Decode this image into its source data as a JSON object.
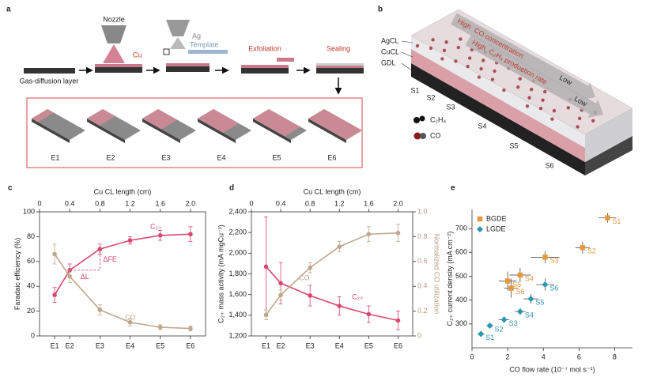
{
  "diagram_a": {
    "panel": "a",
    "nozzle": "Nozzle",
    "cu": "Cu",
    "ag": "Ag",
    "template": "Template",
    "exfoliation": "Exfoliation",
    "sealing": "Sealing",
    "gdl": "Gas-diffusion layer",
    "electrodes": [
      "E1",
      "E2",
      "E3",
      "E4",
      "E5",
      "E6"
    ]
  },
  "diagram_b": {
    "panel": "b",
    "layers": [
      "AgCL",
      "CuCL",
      "GDL"
    ],
    "segments": [
      "S1",
      "S2",
      "S3",
      "S4",
      "S5",
      "S6"
    ],
    "legend": [
      "C₂H₄",
      "CO"
    ],
    "gradients": [
      {
        "high": "High",
        "text": "CO concentration",
        "low": "Low"
      },
      {
        "high": "High",
        "text": "C₂H₄ production rate",
        "low": "Low"
      }
    ]
  },
  "chart_data": [
    {
      "type": "line",
      "panel": "c",
      "xlabel": "Cu CL length (cm)",
      "ylabel": "Faradaic efficiency (%)",
      "x": [
        0.2,
        0.4,
        0.8,
        1.2,
        1.6,
        2.0
      ],
      "categories": [
        "E1",
        "E2",
        "E3",
        "E4",
        "E5",
        "E6"
      ],
      "xlim": [
        0,
        2.2
      ],
      "xticks": [
        0,
        0.4,
        0.8,
        1.2,
        1.6,
        {
          "value": 2,
          "label": "2.0"
        }
      ],
      "ylim": [
        0,
        100
      ],
      "yticks": [
        0,
        20,
        40,
        60,
        80,
        100
      ],
      "series": [
        {
          "name": "C₂₊",
          "color": "#d9476f",
          "values": [
            33,
            53,
            70,
            77,
            81,
            82
          ],
          "errors": [
            6,
            5,
            4,
            3,
            4,
            6
          ]
        },
        {
          "name": "CO",
          "color": "#bfa68c",
          "values": [
            66,
            48,
            21,
            11,
            7,
            6
          ],
          "errors": [
            8,
            5,
            4,
            3,
            2,
            2
          ]
        }
      ],
      "annotations": [
        "ΔL",
        "ΔFE"
      ]
    },
    {
      "type": "line",
      "panel": "d",
      "xlabel": "Cu CL length (cm)",
      "ylabel": "C₂₊ mass activity (mA mgCu⁻¹)",
      "y2label": "Normalized CO utilization",
      "x": [
        0.2,
        0.4,
        0.8,
        1.2,
        1.6,
        2.0
      ],
      "categories": [
        "E1",
        "E2",
        "E3",
        "E4",
        "E5",
        "E6"
      ],
      "xlim": [
        0,
        2.2
      ],
      "xticks": [
        0,
        0.4,
        0.8,
        1.2,
        1.6,
        {
          "value": 2,
          "label": "2.0"
        }
      ],
      "ylim": [
        1200,
        2400
      ],
      "yticks": [
        {
          "value": 1200,
          "label": "1,200"
        },
        {
          "value": 1400,
          "label": "1,400"
        },
        {
          "value": 1600,
          "label": "1,600"
        },
        {
          "value": 1800,
          "label": "1,800"
        },
        {
          "value": 2000,
          "label": "2,000"
        },
        {
          "value": 2200,
          "label": "2,200"
        },
        {
          "value": 2400,
          "label": "2,400"
        }
      ],
      "y2lim": [
        0,
        1
      ],
      "y2ticks": [
        0,
        0.2,
        0.4,
        0.6,
        0.8,
        {
          "value": 1,
          "label": "1.0"
        }
      ],
      "series": [
        {
          "name": "C₂₊",
          "color": "#d9476f",
          "values": [
            1870,
            1710,
            1590,
            1490,
            1410,
            1350
          ],
          "errors": [
            480,
            200,
            100,
            90,
            80,
            90
          ]
        },
        {
          "name": "CO",
          "color": "#bfa68c",
          "axis": "y2",
          "values": [
            0.17,
            0.33,
            0.55,
            0.72,
            0.82,
            0.83
          ],
          "errors": [
            0.04,
            0.04,
            0.04,
            0.04,
            0.06,
            0.07
          ]
        }
      ]
    },
    {
      "type": "scatter",
      "panel": "e",
      "xlabel": "CO flow rate (10⁻⁷ mol s⁻¹)",
      "ylabel": "C₂₊ current density (mA cm⁻²)",
      "xlim": [
        0,
        9
      ],
      "xticks": [
        0,
        2,
        4,
        6,
        8
      ],
      "ylim": [
        200,
        780
      ],
      "yticks": [
        300,
        400,
        500,
        600,
        700
      ],
      "legend": "upper left",
      "series": [
        {
          "name": "BGDE",
          "color": "#e8973a",
          "marker": "square",
          "x": [
            7.6,
            6.2,
            4.1,
            2.7,
            2.0,
            2.2
          ],
          "values": [
            745,
            620,
            580,
            505,
            480,
            450
          ],
          "xerr": [
            0.5,
            0.4,
            0.8,
            0.6,
            0.5,
            0.4
          ],
          "yerr": [
            20,
            25,
            25,
            30,
            40,
            40
          ],
          "labels": [
            "S1",
            "S2",
            "S3",
            "S4",
            "S5",
            "S6"
          ]
        },
        {
          "name": "LGDE",
          "color": "#2a97b0",
          "marker": "diamond",
          "x": [
            0.5,
            1.0,
            1.8,
            2.7,
            3.3,
            4.1
          ],
          "values": [
            258,
            293,
            318,
            352,
            405,
            465
          ],
          "xerr": [
            0.2,
            0.2,
            0.3,
            0.3,
            0.4,
            0.5
          ],
          "yerr": [
            10,
            10,
            15,
            15,
            20,
            25
          ],
          "labels": [
            "S1",
            "S2",
            "S3",
            "S4",
            "S5",
            "S6"
          ]
        }
      ]
    }
  ]
}
